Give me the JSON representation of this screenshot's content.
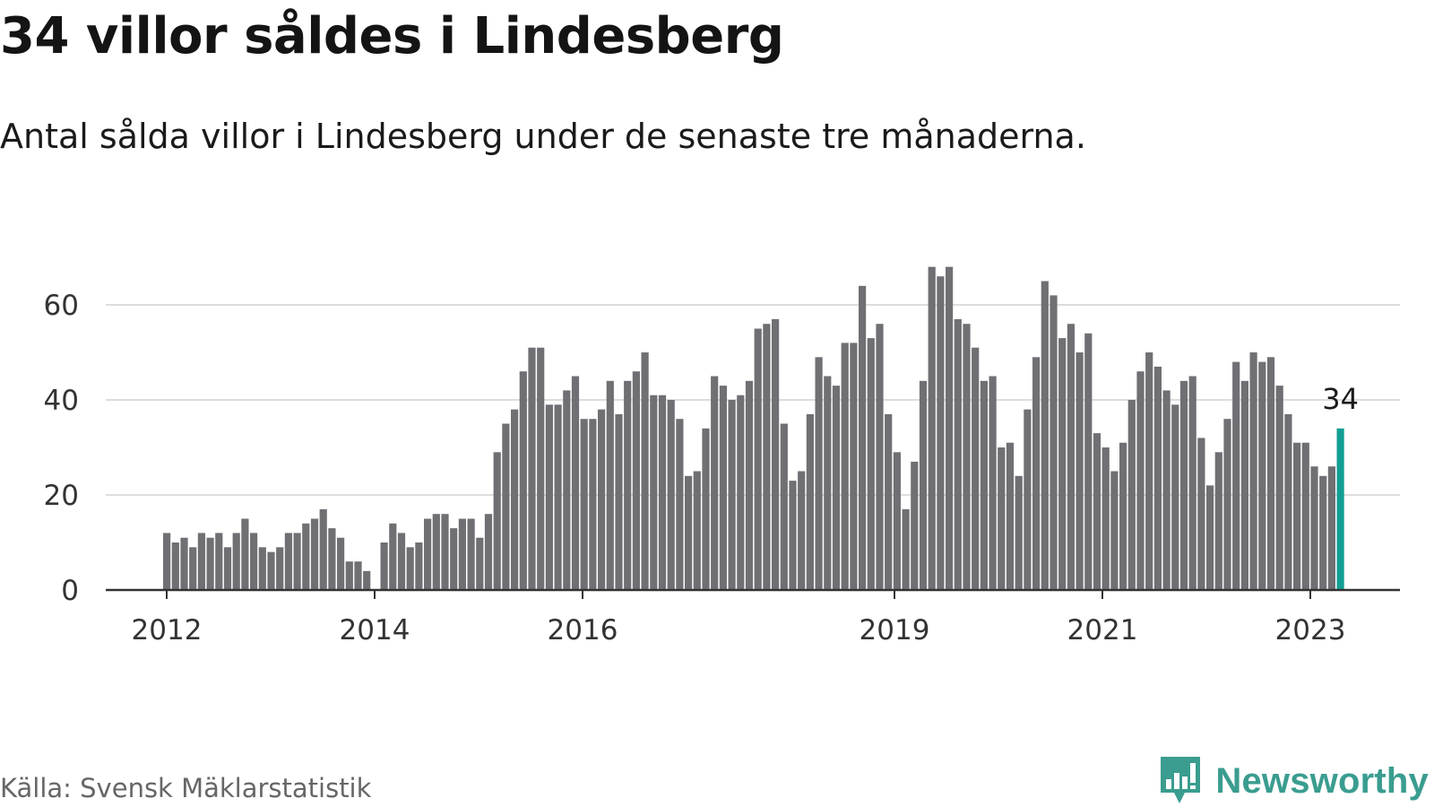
{
  "header": {
    "title": "34 villor såldes i Lindesberg",
    "subtitle": "Antal sålda villor i Lindesberg under de senaste tre månaderna."
  },
  "footer": {
    "source": "Källa: Svensk Mäklarstatistik",
    "brand": "Newsworthy",
    "brand_icon": "newsworthy-logo-icon"
  },
  "colors": {
    "bar": "#706f74",
    "highlight": "#139e94",
    "grid": "#dddddd",
    "axis": "#333333",
    "brand": "#3a9d8f"
  },
  "chart_data": {
    "type": "bar",
    "x_tick_labels": [
      "2012",
      "2014",
      "2016",
      "2019",
      "2021",
      "2023"
    ],
    "y_ticks": [
      0,
      20,
      40,
      60
    ],
    "ylim": [
      0,
      70
    ],
    "grid": true,
    "highlight_last": true,
    "annotation": "34",
    "series": [
      {
        "values": [
          12,
          10,
          11,
          9,
          12,
          11,
          12,
          9,
          12,
          15,
          12,
          9,
          8,
          9,
          12,
          12,
          14,
          15,
          17,
          13,
          11,
          6,
          6,
          4,
          0,
          10,
          14,
          12,
          9,
          10,
          15,
          16,
          16,
          13,
          15,
          15,
          11,
          16,
          29,
          35,
          38,
          46,
          51,
          51,
          39,
          39,
          42,
          45,
          36,
          36,
          38,
          44,
          37,
          44,
          46,
          50,
          41,
          41,
          40,
          36,
          24,
          25,
          34,
          45,
          43,
          40,
          41,
          44,
          55,
          56,
          57,
          35,
          23,
          25,
          37,
          49,
          45,
          43,
          52,
          52,
          64,
          53,
          56,
          37,
          29,
          17,
          27,
          44,
          68,
          66,
          68,
          57,
          56,
          51,
          44,
          45,
          30,
          31,
          24,
          38,
          49,
          65,
          62,
          53,
          56,
          50,
          54,
          33,
          30,
          25,
          31,
          40,
          46,
          50,
          47,
          42,
          39,
          44,
          45,
          32,
          22,
          29,
          36,
          48,
          44,
          50,
          48,
          49,
          43,
          37,
          31,
          31,
          26,
          24,
          26,
          34
        ]
      }
    ]
  }
}
